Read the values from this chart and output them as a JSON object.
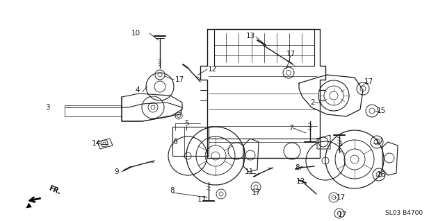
{
  "bg_color": "#ffffff",
  "line_color": "#1a1a1a",
  "text_color": "#1a1a1a",
  "diagram_code": "SL03 B4700",
  "figsize": [
    6.4,
    3.19
  ],
  "dpi": 100,
  "labels": [
    [
      "10",
      195,
      48
    ],
    [
      "17",
      258,
      115
    ],
    [
      "12",
      305,
      100
    ],
    [
      "4",
      198,
      130
    ],
    [
      "3",
      68,
      155
    ],
    [
      "5",
      268,
      178
    ],
    [
      "6",
      252,
      205
    ],
    [
      "14",
      138,
      207
    ],
    [
      "9",
      168,
      248
    ],
    [
      "8",
      248,
      275
    ],
    [
      "17",
      290,
      288
    ],
    [
      "11",
      358,
      248
    ],
    [
      "17",
      368,
      278
    ],
    [
      "13",
      360,
      52
    ],
    [
      "17",
      418,
      78
    ],
    [
      "2",
      450,
      148
    ],
    [
      "7",
      418,
      185
    ],
    [
      "17",
      530,
      118
    ],
    [
      "15",
      548,
      160
    ],
    [
      "1",
      490,
      208
    ],
    [
      "17",
      545,
      205
    ],
    [
      "8",
      428,
      242
    ],
    [
      "13",
      432,
      262
    ],
    [
      "17",
      490,
      285
    ],
    [
      "17",
      492,
      310
    ],
    [
      "16",
      548,
      252
    ]
  ]
}
